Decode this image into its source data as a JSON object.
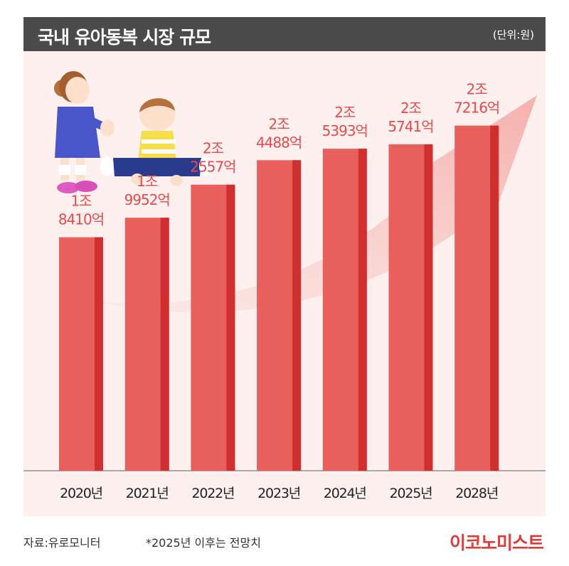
{
  "header": {
    "title": "국내 유아동복 시장 규모",
    "unit": "(단위:원)"
  },
  "colors": {
    "bar": "#e95f5b",
    "bar_side": "#cf2f2f",
    "label": "#e84b4b",
    "panel": "#fdf0ee",
    "header": "#4b4b4b",
    "arrow": "#f7c3c0",
    "brand": "#e03a3a"
  },
  "illustration": {
    "icon": "children-illustration"
  },
  "chart_data": {
    "type": "bar",
    "title": "국내 유아동복 시장 규모",
    "categories": [
      "2020년",
      "2021년",
      "2022년",
      "2023년",
      "2024년",
      "2025년",
      "2028년"
    ],
    "values": [
      18410,
      19952,
      22557,
      24488,
      25393,
      25741,
      27216
    ],
    "value_labels": [
      [
        "1조",
        "8410억"
      ],
      [
        "1조",
        "9952억"
      ],
      [
        "2조",
        "2557억"
      ],
      [
        "2조",
        "4488억"
      ],
      [
        "2조",
        "5393억"
      ],
      [
        "2조",
        "5741억"
      ],
      [
        "2조",
        "7216억"
      ]
    ],
    "ylim": [
      0,
      30000
    ],
    "grid": false,
    "legend": "none"
  },
  "footer": {
    "source": "자료:유로모니터",
    "note": "*2025년 이후는 전망치",
    "brand": "이코노미스트"
  }
}
